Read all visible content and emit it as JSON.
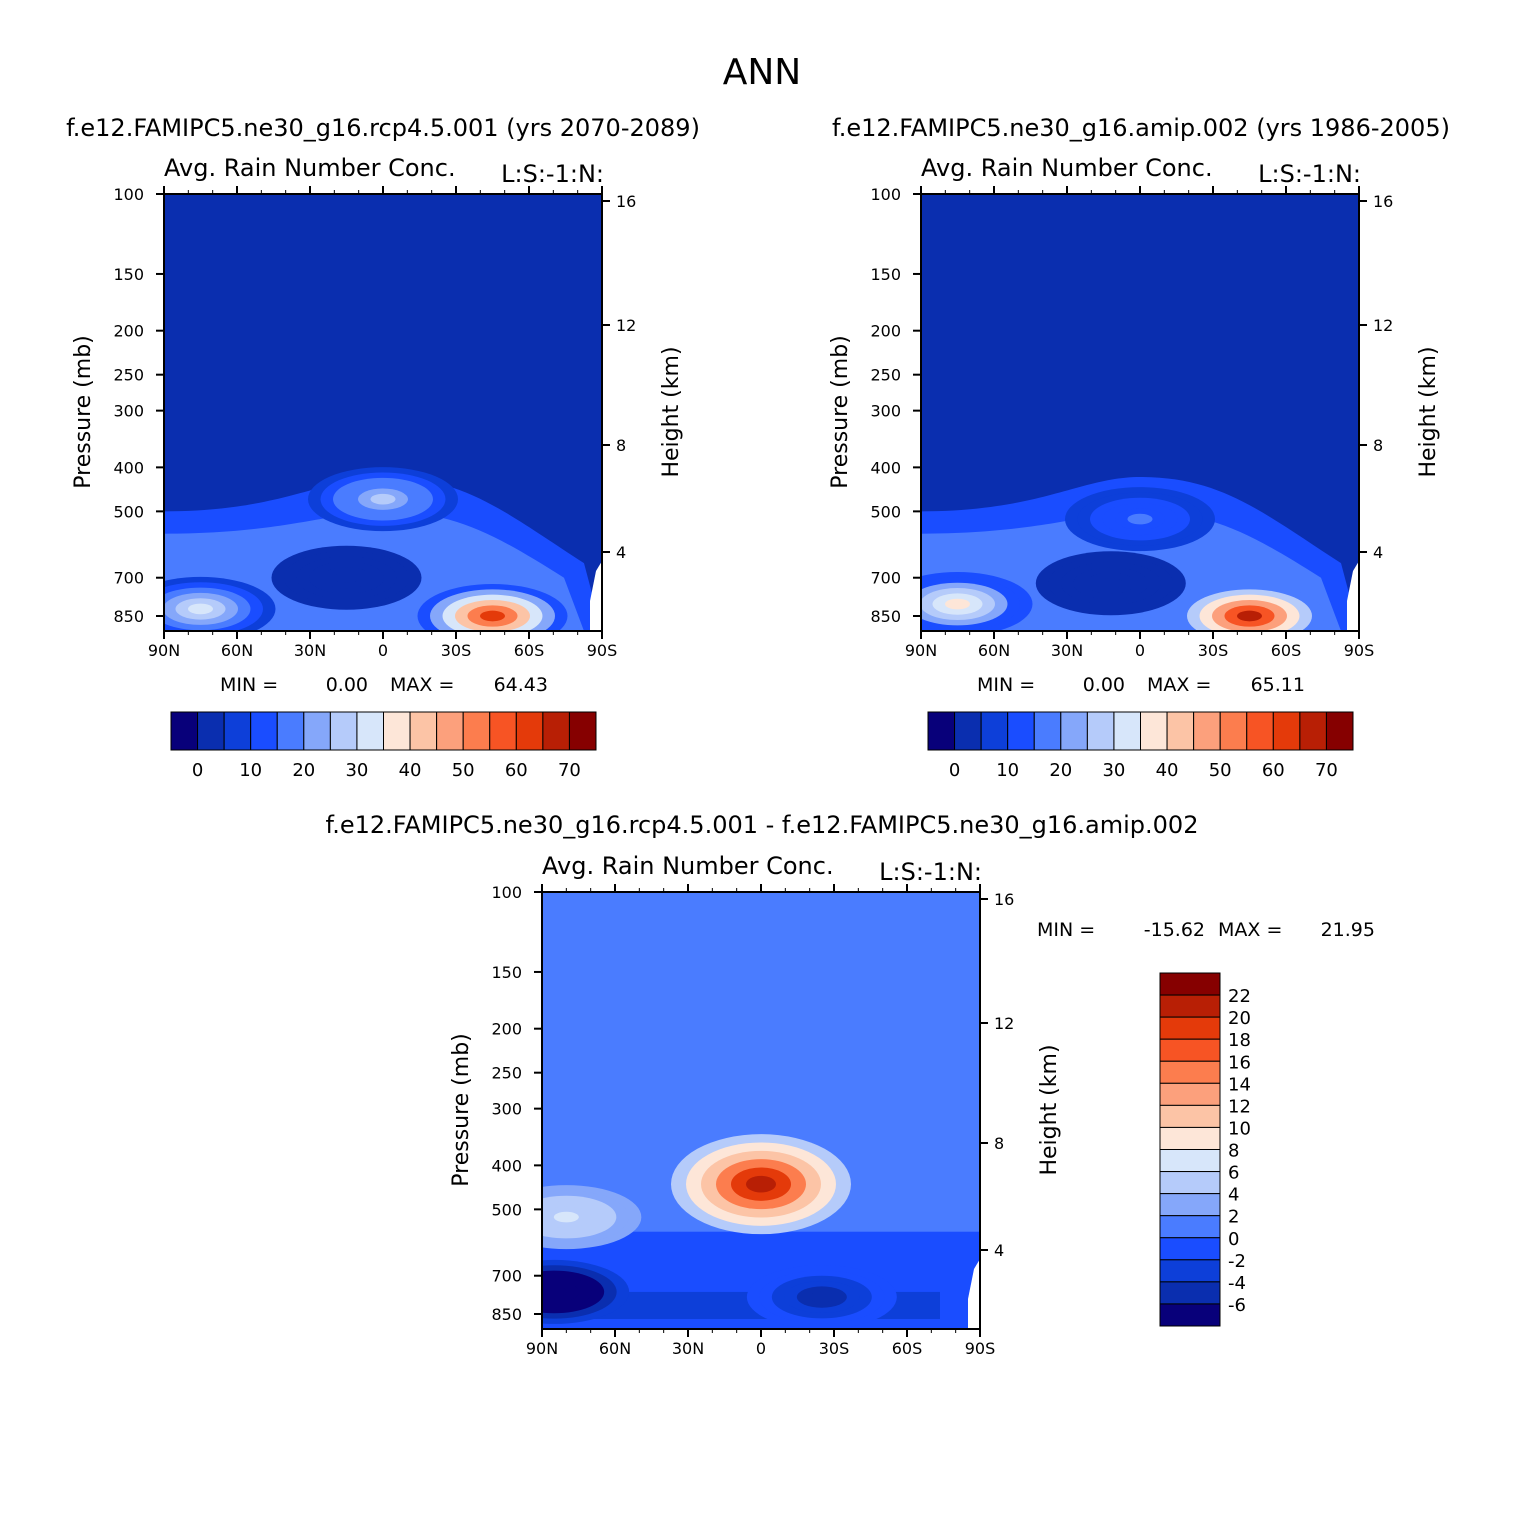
{
  "figure": {
    "title": "ANN"
  },
  "chart_data": [
    {
      "type": "heatmap",
      "panel_title": "f.e12.FAMIPC5.ne30_g16.rcp4.5.001 (yrs 2070-2089)",
      "subtitle_left": "Avg. Rain Number Conc.",
      "subtitle_right": "L:S:-1:N:",
      "xlabel": "",
      "ylabel": "Pressure (mb)",
      "ylabel_right": "Height (km)",
      "x_ticks": [
        "90N",
        "60N",
        "30N",
        "0",
        "30S",
        "60S",
        "90S"
      ],
      "y_ticks": [
        "100",
        "150",
        "200",
        "250",
        "300",
        "400",
        "500",
        "700",
        "850"
      ],
      "y_ticks_right": [
        "16",
        "12",
        "8",
        "4"
      ],
      "y_scale": "log pressure",
      "min_label": "MIN =",
      "min_value": "0.00",
      "max_label": "MAX =",
      "max_value": "64.43",
      "colorbar_ticks": [
        "0",
        "10",
        "20",
        "30",
        "40",
        "50",
        "60",
        "70"
      ],
      "colorbar_colors": [
        "#08007a",
        "#0a2eaf",
        "#0d3fd9",
        "#1a4dff",
        "#4a7cff",
        "#85a7fa",
        "#b5cbfa",
        "#d7e6fa",
        "#fde6d8",
        "#fcc4a6",
        "#fca07c",
        "#fc7d4e",
        "#f75424",
        "#e43a0a",
        "#b81f05",
        "#860000"
      ],
      "features": [
        {
          "lat": -45,
          "plev": 850,
          "value": 64.43
        },
        {
          "lat": 75,
          "plev": 820,
          "value": 30
        },
        {
          "lat": 0,
          "plev": 470,
          "value": 25
        },
        {
          "lat": 15,
          "plev": 700,
          "value": 3
        }
      ]
    },
    {
      "type": "heatmap",
      "panel_title": "f.e12.FAMIPC5.ne30_g16.amip.002 (yrs 1986-2005)",
      "subtitle_left": "Avg. Rain Number Conc.",
      "subtitle_right": "L:S:-1:N:",
      "xlabel": "",
      "ylabel": "Pressure (mb)",
      "ylabel_right": "Height (km)",
      "x_ticks": [
        "90N",
        "60N",
        "30N",
        "0",
        "30S",
        "60S",
        "90S"
      ],
      "y_ticks": [
        "100",
        "150",
        "200",
        "250",
        "300",
        "400",
        "500",
        "700",
        "850"
      ],
      "y_ticks_right": [
        "16",
        "12",
        "8",
        "4"
      ],
      "y_scale": "log pressure",
      "min_label": "MIN =",
      "min_value": "0.00",
      "max_label": "MAX =",
      "max_value": "65.11",
      "colorbar_ticks": [
        "0",
        "10",
        "20",
        "30",
        "40",
        "50",
        "60",
        "70"
      ],
      "colorbar_colors": [
        "#08007a",
        "#0a2eaf",
        "#0d3fd9",
        "#1a4dff",
        "#4a7cff",
        "#85a7fa",
        "#b5cbfa",
        "#d7e6fa",
        "#fde6d8",
        "#fcc4a6",
        "#fca07c",
        "#fc7d4e",
        "#f75424",
        "#e43a0a",
        "#b81f05",
        "#860000"
      ],
      "features": [
        {
          "lat": -45,
          "plev": 850,
          "value": 65.11
        },
        {
          "lat": 75,
          "plev": 800,
          "value": 35
        },
        {
          "lat": 0,
          "plev": 520,
          "value": 15
        },
        {
          "lat": 12,
          "plev": 720,
          "value": 3
        }
      ]
    },
    {
      "type": "heatmap",
      "panel_title": "f.e12.FAMIPC5.ne30_g16.rcp4.5.001 - f.e12.FAMIPC5.ne30_g16.amip.002",
      "subtitle_left": "Avg. Rain Number Conc.",
      "subtitle_right": "L:S:-1:N:",
      "xlabel": "",
      "ylabel": "Pressure (mb)",
      "ylabel_right": "Height (km)",
      "x_ticks": [
        "90N",
        "60N",
        "30N",
        "0",
        "30S",
        "60S",
        "90S"
      ],
      "y_ticks": [
        "100",
        "150",
        "200",
        "250",
        "300",
        "400",
        "500",
        "700",
        "850"
      ],
      "y_ticks_right": [
        "16",
        "12",
        "8",
        "4"
      ],
      "y_scale": "log pressure",
      "min_label": "MIN =",
      "min_value": "-15.62",
      "max_label": "MAX =",
      "max_value": "21.95",
      "colorbar_ticks": [
        "22",
        "20",
        "18",
        "16",
        "14",
        "12",
        "10",
        "8",
        "6",
        "4",
        "2",
        "0",
        "-2",
        "-4",
        "-6"
      ],
      "colorbar_colors": [
        "#860000",
        "#b81f05",
        "#e43a0a",
        "#f75424",
        "#fc7d4e",
        "#fca07c",
        "#fcc4a6",
        "#fde6d8",
        "#d7e6fa",
        "#b5cbfa",
        "#85a7fa",
        "#4a7cff",
        "#1a4dff",
        "#0d3fd9",
        "#0a2eaf",
        "#08007a"
      ],
      "features": [
        {
          "lat": 0,
          "plev": 440,
          "value": 21.95
        },
        {
          "lat": 80,
          "plev": 520,
          "value": 6
        },
        {
          "lat": 85,
          "plev": 760,
          "value": -15.62
        },
        {
          "lat": -25,
          "plev": 780,
          "value": -6
        }
      ]
    }
  ]
}
